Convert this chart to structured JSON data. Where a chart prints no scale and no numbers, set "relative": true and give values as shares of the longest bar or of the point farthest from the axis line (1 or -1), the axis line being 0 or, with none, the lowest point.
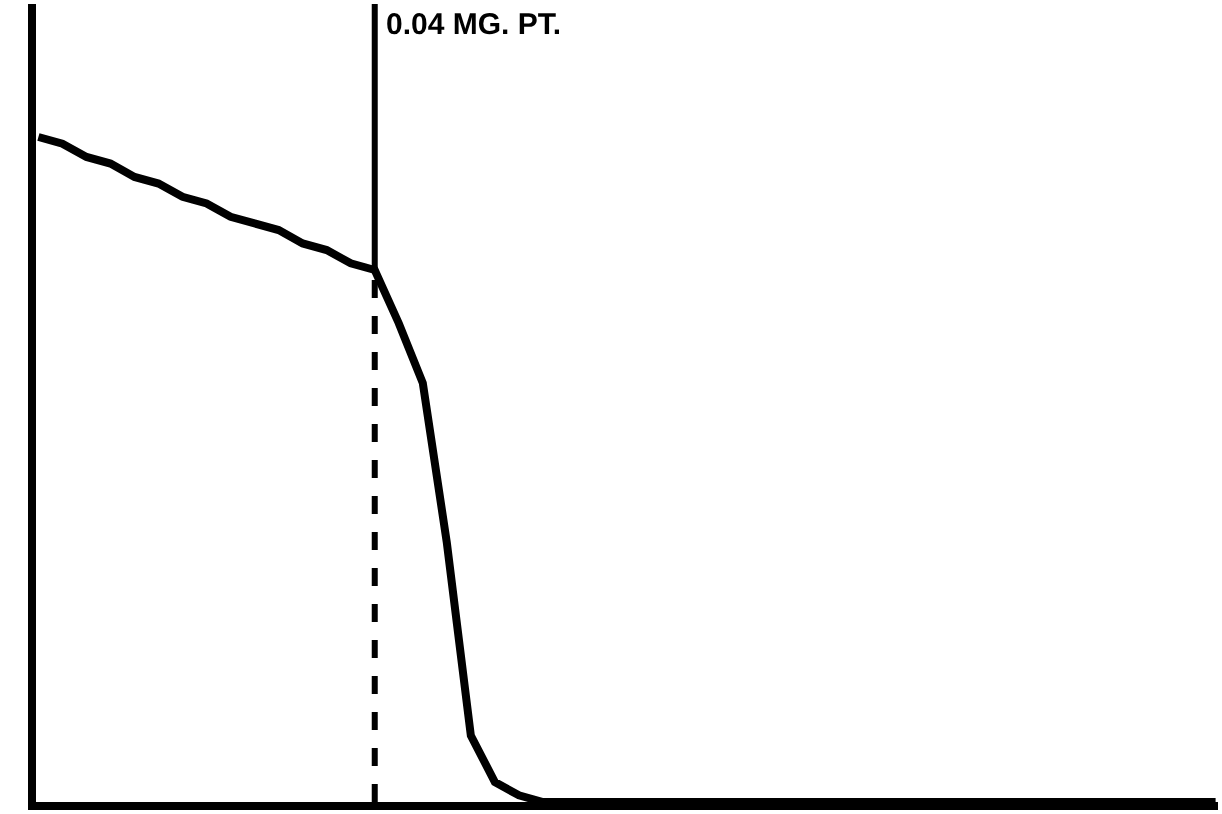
{
  "chart_data": {
    "type": "line",
    "relative": true,
    "categories": [
      null,
      null,
      null,
      null,
      null,
      null,
      null,
      null,
      null,
      null,
      null,
      null,
      null,
      null,
      null,
      null,
      null,
      null,
      null,
      null,
      null,
      null,
      null,
      null,
      null,
      null,
      null,
      null,
      null,
      null,
      null,
      null,
      null,
      null,
      null,
      null,
      null,
      null,
      null,
      null,
      null,
      null,
      null,
      null,
      null,
      null,
      null,
      null,
      null,
      null
    ],
    "series": [
      {
        "color": "#000000",
        "values": [
          1.0,
          0.99,
          0.97,
          0.96,
          0.94,
          0.93,
          0.91,
          0.9,
          0.88,
          0.87,
          0.86,
          0.84,
          0.83,
          0.81,
          0.8,
          0.72,
          0.63,
          0.39,
          0.1,
          0.03,
          0.01,
          0,
          0,
          0,
          0,
          0,
          0,
          0,
          0,
          0,
          0,
          0,
          0,
          0,
          0,
          0,
          0,
          0,
          0,
          0,
          0,
          0,
          0,
          0,
          0,
          0,
          0,
          0,
          0,
          0
        ]
      }
    ],
    "annotations": [
      "0.04 MG. PT."
    ]
  }
}
